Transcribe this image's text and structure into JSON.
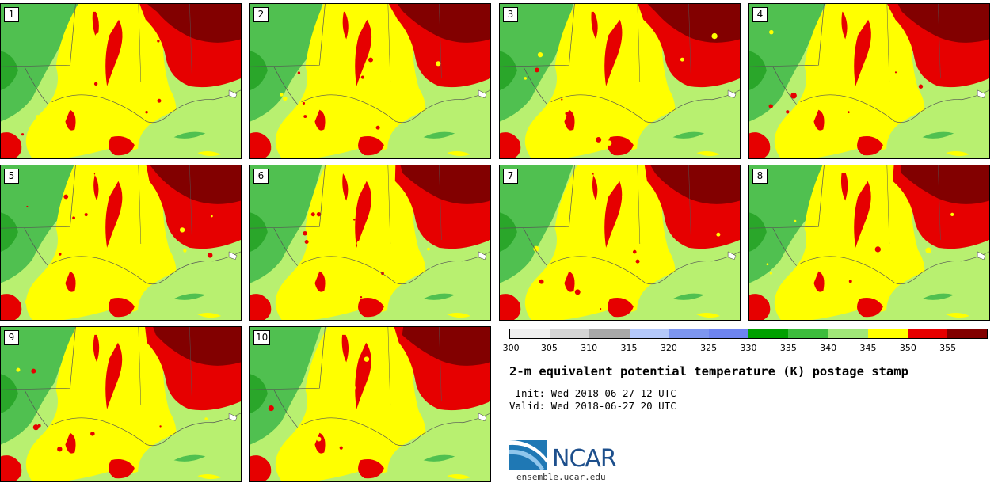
{
  "panels": [
    {
      "label": "1"
    },
    {
      "label": "2"
    },
    {
      "label": "3"
    },
    {
      "label": "4"
    },
    {
      "label": "5"
    },
    {
      "label": "6"
    },
    {
      "label": "7"
    },
    {
      "label": "8"
    },
    {
      "label": "9"
    },
    {
      "label": "10"
    }
  ],
  "colorbar": {
    "ticks": [
      "300",
      "305",
      "310",
      "315",
      "320",
      "325",
      "330",
      "335",
      "340",
      "345",
      "350",
      "355"
    ],
    "colors": [
      "#f0f0f0",
      "#d4d4d4",
      "#a8a8a8",
      "#b4c8fa",
      "#7d96f0",
      "#6e84f0",
      "#00a000",
      "#3cbc3c",
      "#a0e678",
      "#ffff00",
      "#e60000",
      "#820000"
    ]
  },
  "title": "2-m equivalent potential temperature (K) postage stamp",
  "init_text": " Init: Wed 2018-06-27 12 UTC",
  "valid_text": "Valid: Wed 2018-06-27 20 UTC",
  "logo": {
    "text": "NCAR",
    "url": "ensemble.ucar.edu"
  },
  "map_colors": {
    "light_green": "#b8f070",
    "yellow": "#ffff00",
    "green": "#50c050",
    "dark_green": "#2aa62a",
    "red": "#e60000",
    "dark_red": "#820000",
    "border": "#555555"
  }
}
